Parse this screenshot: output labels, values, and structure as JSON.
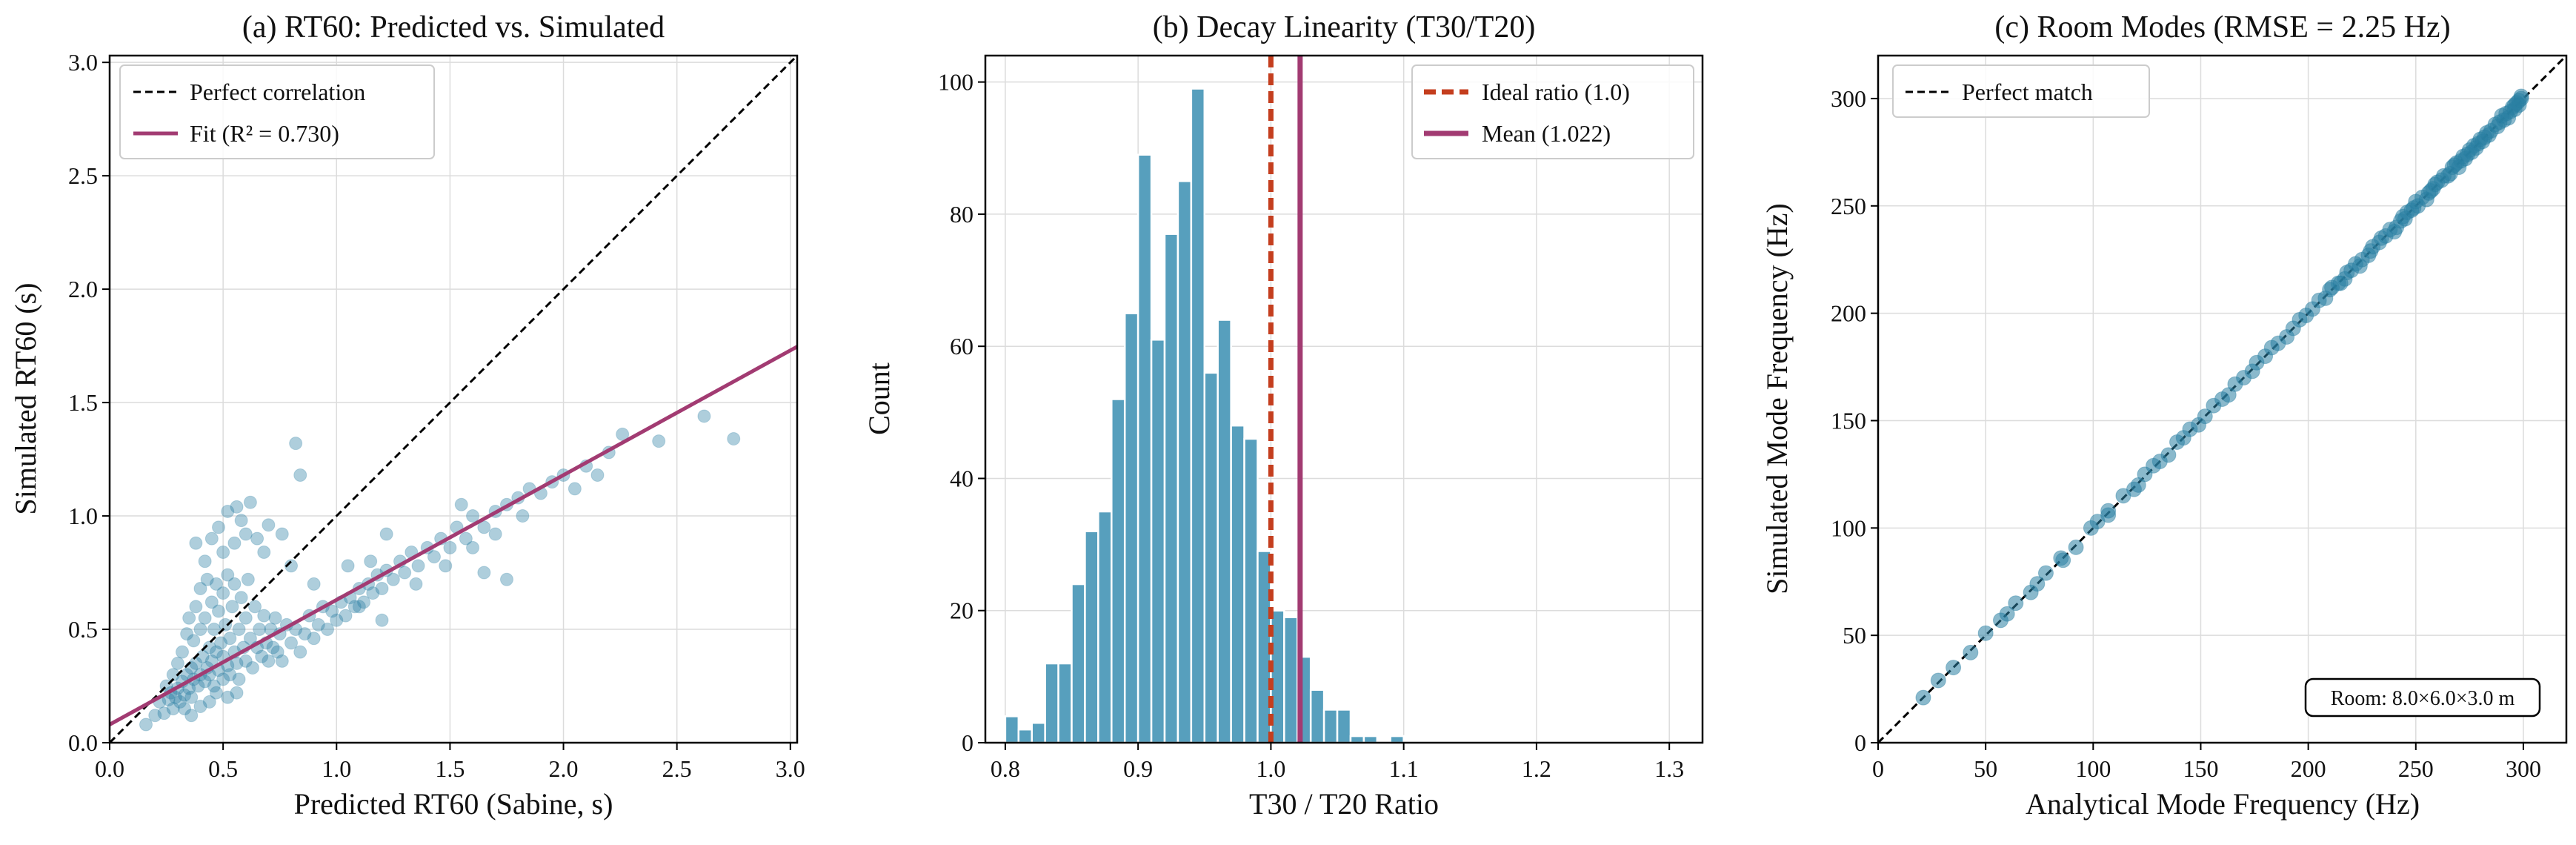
{
  "chart_data": [
    {
      "type": "scatter",
      "title": "(a) RT60: Predicted vs. Simulated",
      "xlabel": "Predicted RT60 (Sabine, s)",
      "ylabel": "Simulated RT60 (s)",
      "xlim": [
        0.0,
        3.03
      ],
      "ylim": [
        0.0,
        3.03
      ],
      "xticks": [
        0.0,
        0.5,
        1.0,
        1.5,
        2.0,
        2.5,
        3.0
      ],
      "xtick_labels": [
        "0.0",
        "0.5",
        "1.0",
        "1.5",
        "2.0",
        "2.5",
        "3.0"
      ],
      "yticks": [
        0.0,
        0.5,
        1.0,
        1.5,
        2.0,
        2.5,
        3.0
      ],
      "ytick_labels": [
        "0.0",
        "0.5",
        "1.0",
        "1.5",
        "2.0",
        "2.5",
        "3.0"
      ],
      "grid": true,
      "legend_position": "top-left",
      "colors": {
        "points": "#2a7fa3",
        "fit": "#a23b72",
        "identity": "#000000"
      },
      "legend": [
        {
          "label": "Perfect correlation",
          "style": "dashed",
          "color": "#000000"
        },
        {
          "label": "Fit (R² = 0.730)",
          "style": "solid",
          "color": "#a23b72"
        }
      ],
      "identity_line": {
        "x": [
          0.0,
          3.03
        ],
        "y": [
          0.0,
          3.03
        ]
      },
      "fit_line": {
        "slope": 0.55,
        "intercept": 0.08
      },
      "points": [
        [
          0.16,
          0.08
        ],
        [
          0.2,
          0.12
        ],
        [
          0.22,
          0.18
        ],
        [
          0.24,
          0.13
        ],
        [
          0.25,
          0.25
        ],
        [
          0.26,
          0.19
        ],
        [
          0.27,
          0.22
        ],
        [
          0.28,
          0.15
        ],
        [
          0.28,
          0.3
        ],
        [
          0.29,
          0.2
        ],
        [
          0.3,
          0.35
        ],
        [
          0.3,
          0.24
        ],
        [
          0.31,
          0.18
        ],
        [
          0.32,
          0.4
        ],
        [
          0.32,
          0.27
        ],
        [
          0.33,
          0.21
        ],
        [
          0.34,
          0.48
        ],
        [
          0.34,
          0.3
        ],
        [
          0.35,
          0.24
        ],
        [
          0.35,
          0.55
        ],
        [
          0.36,
          0.33
        ],
        [
          0.36,
          0.2
        ],
        [
          0.37,
          0.45
        ],
        [
          0.37,
          0.28
        ],
        [
          0.38,
          0.6
        ],
        [
          0.38,
          0.35
        ],
        [
          0.39,
          0.25
        ],
        [
          0.4,
          0.5
        ],
        [
          0.4,
          0.3
        ],
        [
          0.4,
          0.68
        ],
        [
          0.41,
          0.38
        ],
        [
          0.42,
          0.27
        ],
        [
          0.42,
          0.55
        ],
        [
          0.43,
          0.33
        ],
        [
          0.43,
          0.72
        ],
        [
          0.44,
          0.42
        ],
        [
          0.44,
          0.3
        ],
        [
          0.45,
          0.62
        ],
        [
          0.45,
          0.36
        ],
        [
          0.46,
          0.25
        ],
        [
          0.46,
          0.5
        ],
        [
          0.47,
          0.4
        ],
        [
          0.47,
          0.7
        ],
        [
          0.48,
          0.32
        ],
        [
          0.48,
          0.58
        ],
        [
          0.49,
          0.44
        ],
        [
          0.5,
          0.28
        ],
        [
          0.5,
          0.66
        ],
        [
          0.5,
          0.38
        ],
        [
          0.51,
          0.52
        ],
        [
          0.52,
          0.34
        ],
        [
          0.52,
          0.74
        ],
        [
          0.53,
          0.46
        ],
        [
          0.53,
          0.3
        ],
        [
          0.54,
          0.6
        ],
        [
          0.55,
          0.4
        ],
        [
          0.55,
          0.7
        ],
        [
          0.56,
          0.35
        ],
        [
          0.57,
          0.5
        ],
        [
          0.57,
          0.28
        ],
        [
          0.58,
          0.64
        ],
        [
          0.59,
          0.42
        ],
        [
          0.6,
          0.55
        ],
        [
          0.6,
          0.36
        ],
        [
          0.61,
          0.72
        ],
        [
          0.62,
          0.46
        ],
        [
          0.63,
          0.33
        ],
        [
          0.64,
          0.6
        ],
        [
          0.65,
          0.42
        ],
        [
          0.66,
          0.5
        ],
        [
          0.67,
          0.38
        ],
        [
          0.68,
          0.56
        ],
        [
          0.69,
          0.44
        ],
        [
          0.7,
          0.36
        ],
        [
          0.71,
          0.5
        ],
        [
          0.72,
          0.42
        ],
        [
          0.73,
          0.55
        ],
        [
          0.74,
          0.4
        ],
        [
          0.75,
          0.48
        ],
        [
          0.76,
          0.36
        ],
        [
          0.78,
          0.52
        ],
        [
          0.8,
          0.44
        ],
        [
          0.82,
          0.5
        ],
        [
          0.84,
          0.4
        ],
        [
          0.86,
          0.48
        ],
        [
          0.88,
          0.56
        ],
        [
          0.9,
          0.46
        ],
        [
          0.92,
          0.52
        ],
        [
          0.94,
          0.6
        ],
        [
          0.96,
          0.5
        ],
        [
          0.98,
          0.58
        ],
        [
          1.0,
          0.54
        ],
        [
          1.02,
          0.62
        ],
        [
          1.04,
          0.56
        ],
        [
          1.06,
          0.64
        ],
        [
          1.08,
          0.6
        ],
        [
          1.1,
          0.68
        ],
        [
          1.12,
          0.62
        ],
        [
          1.14,
          0.7
        ],
        [
          1.16,
          0.66
        ],
        [
          1.18,
          0.74
        ],
        [
          1.2,
          0.68
        ],
        [
          1.22,
          0.76
        ],
        [
          1.25,
          0.72
        ],
        [
          1.28,
          0.8
        ],
        [
          1.3,
          0.75
        ],
        [
          1.33,
          0.84
        ],
        [
          1.36,
          0.78
        ],
        [
          1.4,
          0.86
        ],
        [
          1.43,
          0.82
        ],
        [
          1.46,
          0.9
        ],
        [
          1.5,
          0.86
        ],
        [
          1.53,
          0.95
        ],
        [
          1.57,
          0.9
        ],
        [
          1.6,
          1.0
        ],
        [
          1.65,
          0.95
        ],
        [
          1.7,
          1.02
        ],
        [
          1.75,
          1.05
        ],
        [
          1.8,
          1.08
        ],
        [
          1.85,
          1.12
        ],
        [
          1.9,
          1.1
        ],
        [
          1.95,
          1.15
        ],
        [
          2.0,
          1.18
        ],
        [
          2.1,
          1.22
        ],
        [
          2.2,
          1.28
        ],
        [
          2.26,
          1.36
        ],
        [
          2.42,
          1.33
        ],
        [
          2.62,
          1.44
        ],
        [
          2.75,
          1.34
        ],
        [
          0.45,
          0.9
        ],
        [
          0.48,
          0.95
        ],
        [
          0.5,
          0.84
        ],
        [
          0.52,
          1.02
        ],
        [
          0.55,
          0.88
        ],
        [
          0.58,
          0.98
        ],
        [
          0.6,
          0.92
        ],
        [
          0.62,
          1.06
        ],
        [
          0.65,
          0.9
        ],
        [
          0.7,
          0.96
        ],
        [
          0.76,
          0.92
        ],
        [
          0.82,
          1.32
        ],
        [
          0.84,
          1.18
        ],
        [
          0.38,
          0.88
        ],
        [
          0.42,
          0.8
        ],
        [
          0.56,
          1.04
        ],
        [
          0.68,
          0.84
        ],
        [
          0.8,
          0.78
        ],
        [
          0.9,
          0.7
        ],
        [
          1.05,
          0.78
        ],
        [
          1.15,
          0.8
        ],
        [
          1.22,
          0.92
        ],
        [
          1.2,
          0.54
        ],
        [
          1.1,
          0.6
        ],
        [
          1.35,
          0.7
        ],
        [
          1.48,
          0.78
        ],
        [
          1.6,
          0.86
        ],
        [
          1.7,
          0.92
        ],
        [
          1.55,
          1.05
        ],
        [
          1.82,
          1.0
        ],
        [
          1.65,
          0.75
        ],
        [
          1.75,
          0.72
        ],
        [
          2.05,
          1.12
        ],
        [
          2.15,
          1.18
        ],
        [
          0.33,
          0.15
        ],
        [
          0.36,
          0.12
        ],
        [
          0.4,
          0.16
        ],
        [
          0.44,
          0.18
        ],
        [
          0.47,
          0.22
        ],
        [
          0.52,
          0.2
        ],
        [
          0.56,
          0.22
        ]
      ]
    },
    {
      "type": "bar",
      "subtype": "histogram",
      "title": "(b) Decay Linearity (T30/T20)",
      "xlabel": "T30 / T20 Ratio",
      "ylabel": "Count",
      "xlim": [
        0.785,
        1.325
      ],
      "ylim": [
        0,
        104
      ],
      "xticks": [
        0.8,
        0.9,
        1.0,
        1.1,
        1.2,
        1.3
      ],
      "xtick_labels": [
        "0.8",
        "0.9",
        "1.0",
        "1.1",
        "1.2",
        "1.3"
      ],
      "yticks": [
        0,
        20,
        40,
        60,
        80,
        100
      ],
      "ytick_labels": [
        "0",
        "20",
        "40",
        "60",
        "80",
        "100"
      ],
      "grid": true,
      "legend_position": "top-right",
      "colors": {
        "bars": "#579fbd",
        "ideal": "#c43e1e",
        "mean": "#a23b72"
      },
      "bin_start": 0.8,
      "bin_width": 0.01,
      "values": [
        4,
        2,
        3,
        12,
        12,
        24,
        32,
        35,
        52,
        65,
        89,
        61,
        77,
        85,
        99,
        56,
        64,
        48,
        46,
        29,
        20,
        19,
        13,
        8,
        5,
        5,
        1,
        1,
        0,
        1
      ],
      "ideal_ratio": 1.0,
      "mean": 1.022,
      "legend": [
        {
          "label": "Ideal ratio (1.0)",
          "style": "dashed",
          "color": "#c43e1e"
        },
        {
          "label": "Mean (1.022)",
          "style": "solid",
          "color": "#a23b72"
        }
      ]
    },
    {
      "type": "scatter",
      "title": "(c) Room Modes (RMSE = 2.25 Hz)",
      "xlabel": "Analytical Mode Frequency (Hz)",
      "ylabel": "Simulated Mode Frequency (Hz)",
      "xlim": [
        0,
        320
      ],
      "ylim": [
        0,
        320
      ],
      "xticks": [
        0,
        50,
        100,
        150,
        200,
        250,
        300
      ],
      "xtick_labels": [
        "0",
        "50",
        "100",
        "150",
        "200",
        "250",
        "300"
      ],
      "yticks": [
        0,
        50,
        100,
        150,
        200,
        250,
        300
      ],
      "ytick_labels": [
        "0",
        "50",
        "100",
        "150",
        "200",
        "250",
        "300"
      ],
      "grid": true,
      "legend_position": "top-left",
      "colors": {
        "points": "#2a7fa3",
        "identity": "#000000"
      },
      "legend": [
        {
          "label": "Perfect match",
          "style": "dashed",
          "color": "#000000"
        }
      ],
      "annotation": "Room: 8.0×6.0×3.0 m",
      "identity_line": {
        "x": [
          0,
          320
        ],
        "y": [
          0,
          320
        ]
      },
      "points": [
        [
          21,
          21
        ],
        [
          28,
          29
        ],
        [
          35,
          35
        ],
        [
          43,
          42
        ],
        [
          50,
          51
        ],
        [
          57,
          57
        ],
        [
          60,
          60
        ],
        [
          64,
          65
        ],
        [
          71,
          70
        ],
        [
          74,
          74
        ],
        [
          78,
          79
        ],
        [
          85,
          86
        ],
        [
          86,
          85
        ],
        [
          92,
          91
        ],
        [
          99,
          100
        ],
        [
          102,
          103
        ],
        [
          107,
          106
        ],
        [
          107,
          108
        ],
        [
          114,
          115
        ],
        [
          119,
          118
        ],
        [
          121,
          120
        ],
        [
          124,
          125
        ],
        [
          128,
          129
        ],
        [
          131,
          131
        ],
        [
          135,
          134
        ],
        [
          139,
          140
        ],
        [
          142,
          142
        ],
        [
          145,
          146
        ],
        [
          149,
          148
        ],
        [
          152,
          152
        ],
        [
          156,
          157
        ],
        [
          160,
          160
        ],
        [
          163,
          162
        ],
        [
          166,
          167
        ],
        [
          170,
          170
        ],
        [
          174,
          173
        ],
        [
          176,
          177
        ],
        [
          180,
          180
        ],
        [
          183,
          184
        ],
        [
          186,
          186
        ],
        [
          190,
          189
        ],
        [
          193,
          193
        ],
        [
          196,
          197
        ],
        [
          199,
          199
        ],
        [
          202,
          202
        ],
        [
          205,
          206
        ],
        [
          208,
          207
        ],
        [
          211,
          212
        ],
        [
          214,
          214
        ],
        [
          217,
          216
        ],
        [
          220,
          220
        ],
        [
          222,
          223
        ],
        [
          225,
          225
        ],
        [
          228,
          227
        ],
        [
          230,
          231
        ],
        [
          233,
          233
        ],
        [
          236,
          236
        ],
        [
          238,
          239
        ],
        [
          241,
          240
        ],
        [
          243,
          243
        ],
        [
          246,
          247
        ],
        [
          248,
          248
        ],
        [
          251,
          250
        ],
        [
          253,
          254
        ],
        [
          256,
          256
        ],
        [
          258,
          258
        ],
        [
          260,
          261
        ],
        [
          262,
          262
        ],
        [
          265,
          264
        ],
        [
          267,
          268
        ],
        [
          269,
          270
        ],
        [
          271,
          271
        ],
        [
          273,
          272
        ],
        [
          275,
          276
        ],
        [
          277,
          278
        ],
        [
          279,
          279
        ],
        [
          281,
          280
        ],
        [
          283,
          284
        ],
        [
          285,
          285
        ],
        [
          287,
          288
        ],
        [
          289,
          289
        ],
        [
          291,
          290
        ],
        [
          292,
          293
        ],
        [
          294,
          294
        ],
        [
          295,
          296
        ],
        [
          296,
          297
        ],
        [
          297,
          298
        ],
        [
          298,
          299
        ],
        [
          299,
          300
        ],
        [
          299,
          301
        ],
        [
          268,
          269
        ],
        [
          272,
          273
        ],
        [
          276,
          275
        ],
        [
          280,
          281
        ],
        [
          284,
          283
        ],
        [
          288,
          287
        ],
        [
          290,
          292
        ],
        [
          293,
          291
        ],
        [
          296,
          295
        ],
        [
          298,
          297
        ],
        [
          245,
          244
        ],
        [
          250,
          252
        ],
        [
          255,
          253
        ],
        [
          259,
          260
        ],
        [
          263,
          264
        ],
        [
          266,
          265
        ],
        [
          270,
          268
        ],
        [
          274,
          274
        ],
        [
          278,
          277
        ],
        [
          282,
          282
        ],
        [
          210,
          211
        ],
        [
          215,
          214
        ],
        [
          218,
          219
        ],
        [
          224,
          222
        ],
        [
          229,
          229
        ],
        [
          234,
          235
        ],
        [
          240,
          238
        ],
        [
          244,
          245
        ],
        [
          249,
          249
        ],
        [
          257,
          257
        ]
      ]
    }
  ]
}
